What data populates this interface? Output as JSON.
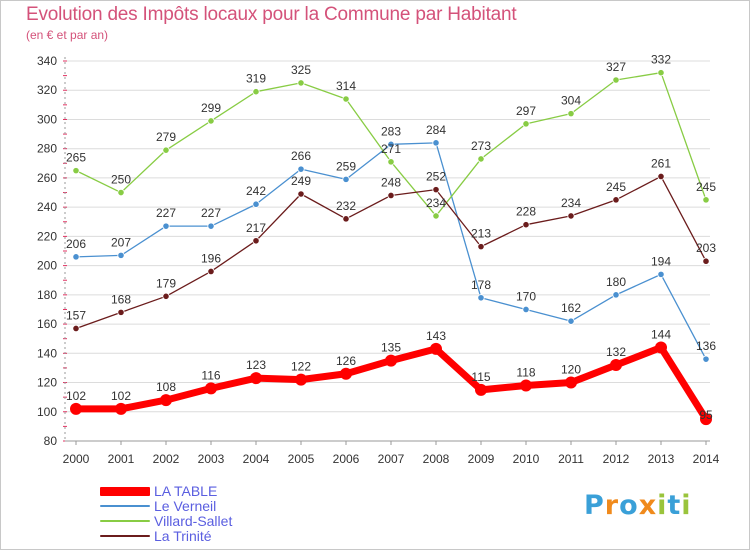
{
  "title": "Evolution des Impôts locaux pour la Commune par Habitant",
  "subtitle": "(en € et par an)",
  "brand": {
    "letters": [
      "P",
      "r",
      "o",
      "x",
      "i",
      "t",
      "i"
    ],
    "colors": [
      "#3aa0d8",
      "#f08a1c",
      "#3aa0d8",
      "#f08a1c",
      "#9ac43c",
      "#3aa0d8",
      "#9ac43c"
    ]
  },
  "chart_data": {
    "type": "line",
    "title": "Evolution des Impôts locaux pour la Commune par Habitant",
    "xlabel": "",
    "ylabel": "(en € et par an)",
    "x": [
      "2000",
      "2001",
      "2002",
      "2003",
      "2004",
      "2005",
      "2006",
      "2007",
      "2008",
      "2009",
      "2010",
      "2011",
      "2012",
      "2013",
      "2014"
    ],
    "y_ticks": [
      80,
      100,
      120,
      140,
      160,
      180,
      200,
      220,
      240,
      260,
      280,
      300,
      320,
      340
    ],
    "ylim": [
      80,
      340
    ],
    "grid": "horizontal",
    "legend_position": "bottom-left",
    "series": [
      {
        "name": "LA TABLE",
        "color": "#ff0000",
        "values": [
          102,
          102,
          108,
          116,
          123,
          122,
          126,
          135,
          143,
          115,
          118,
          120,
          132,
          144,
          95
        ]
      },
      {
        "name": "Le Verneil",
        "color": "#4a90d0",
        "values": [
          206,
          207,
          227,
          227,
          242,
          266,
          259,
          283,
          284,
          178,
          170,
          162,
          180,
          194,
          136
        ]
      },
      {
        "name": "Villard-Sallet",
        "color": "#88cc44",
        "values": [
          265,
          250,
          279,
          299,
          319,
          325,
          314,
          271,
          234,
          273,
          297,
          304,
          327,
          332,
          245
        ]
      },
      {
        "name": "La Trinité",
        "color": "#6b1c1c",
        "values": [
          157,
          168,
          179,
          196,
          217,
          249,
          232,
          248,
          252,
          213,
          228,
          234,
          245,
          261,
          203
        ]
      }
    ]
  }
}
